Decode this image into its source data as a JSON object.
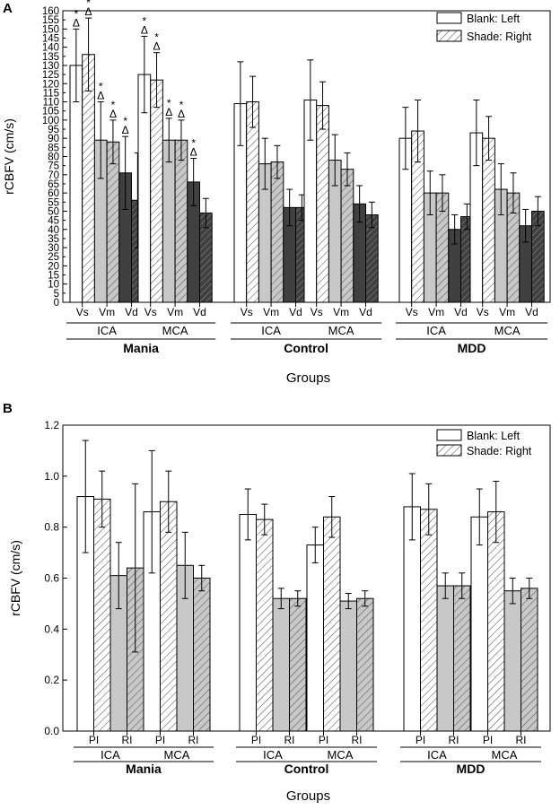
{
  "chart_data": [
    {
      "type": "bar",
      "panel_label": "A",
      "title": "",
      "xlabel": "Groups",
      "ylabel": "rCBFV (cm/s)",
      "ylim": [
        0,
        160
      ],
      "yticks": [
        0,
        5,
        10,
        15,
        20,
        25,
        30,
        35,
        40,
        45,
        50,
        55,
        60,
        65,
        70,
        75,
        80,
        85,
        90,
        95,
        100,
        105,
        110,
        115,
        120,
        125,
        130,
        135,
        140,
        145,
        150,
        155,
        160
      ],
      "grid": false,
      "legend": {
        "position": "top-right",
        "entries": [
          {
            "label": "Blank:  Left",
            "pattern": "blank"
          },
          {
            "label": "Shade: Right",
            "pattern": "hatch"
          }
        ]
      },
      "groups": [
        {
          "name": "Mania",
          "vessels": [
            {
              "name": "ICA",
              "params": [
                {
                  "label": "Vs",
                  "left": 130,
                  "right": 136,
                  "left_err": 20,
                  "right_err": 20,
                  "left_annot": [
                    "*",
                    "Δ"
                  ],
                  "right_annot": [
                    "*",
                    "Δ"
                  ]
                },
                {
                  "label": "Vm",
                  "left": 89,
                  "right": 88,
                  "left_err": 21,
                  "right_err": 12,
                  "left_annot": [
                    "*",
                    "Δ"
                  ],
                  "right_annot": [
                    "*",
                    "Δ"
                  ]
                },
                {
                  "label": "Vd",
                  "left": 71,
                  "right": 56,
                  "left_err": 20,
                  "right_err": 26,
                  "left_annot": [
                    "*",
                    "Δ"
                  ],
                  "right_annot": []
                }
              ]
            },
            {
              "name": "MCA",
              "params": [
                {
                  "label": "Vs",
                  "left": 125,
                  "right": 122,
                  "left_err": 21,
                  "right_err": 15,
                  "left_annot": [
                    "*",
                    "Δ"
                  ],
                  "right_annot": [
                    "*",
                    "Δ"
                  ]
                },
                {
                  "label": "Vm",
                  "left": 89,
                  "right": 89,
                  "left_err": 12,
                  "right_err": 11,
                  "left_annot": [
                    "*",
                    "Δ"
                  ],
                  "right_annot": [
                    "*",
                    "Δ"
                  ]
                },
                {
                  "label": "Vd",
                  "left": 66,
                  "right": 49,
                  "left_err": 13,
                  "right_err": 8,
                  "left_annot": [
                    "*",
                    "Δ"
                  ],
                  "right_annot": []
                }
              ]
            }
          ]
        },
        {
          "name": "Control",
          "vessels": [
            {
              "name": "ICA",
              "params": [
                {
                  "label": "Vs",
                  "left": 109,
                  "right": 110,
                  "left_err": 23,
                  "right_err": 14,
                  "left_annot": [],
                  "right_annot": []
                },
                {
                  "label": "Vm",
                  "left": 76,
                  "right": 77,
                  "left_err": 14,
                  "right_err": 9,
                  "left_annot": [],
                  "right_annot": []
                },
                {
                  "label": "Vd",
                  "left": 52,
                  "right": 52,
                  "left_err": 10,
                  "right_err": 7,
                  "left_annot": [],
                  "right_annot": []
                }
              ]
            },
            {
              "name": "MCA",
              "params": [
                {
                  "label": "Vs",
                  "left": 111,
                  "right": 108,
                  "left_err": 22,
                  "right_err": 13,
                  "left_annot": [],
                  "right_annot": []
                },
                {
                  "label": "Vm",
                  "left": 78,
                  "right": 73,
                  "left_err": 14,
                  "right_err": 9,
                  "left_annot": [],
                  "right_annot": []
                },
                {
                  "label": "Vd",
                  "left": 54,
                  "right": 48,
                  "left_err": 10,
                  "right_err": 7,
                  "left_annot": [],
                  "right_annot": []
                }
              ]
            }
          ]
        },
        {
          "name": "MDD",
          "vessels": [
            {
              "name": "ICA",
              "params": [
                {
                  "label": "Vs",
                  "left": 90,
                  "right": 94,
                  "left_err": 17,
                  "right_err": 17,
                  "left_annot": [],
                  "right_annot": []
                },
                {
                  "label": "Vm",
                  "left": 60,
                  "right": 60,
                  "left_err": 12,
                  "right_err": 10,
                  "left_annot": [],
                  "right_annot": []
                },
                {
                  "label": "Vd",
                  "left": 40,
                  "right": 47,
                  "left_err": 8,
                  "right_err": 7,
                  "left_annot": [],
                  "right_annot": []
                }
              ]
            },
            {
              "name": "MCA",
              "params": [
                {
                  "label": "Vs",
                  "left": 93,
                  "right": 90,
                  "left_err": 18,
                  "right_err": 12,
                  "left_annot": [],
                  "right_annot": []
                },
                {
                  "label": "Vm",
                  "left": 62,
                  "right": 60,
                  "left_err": 14,
                  "right_err": 11,
                  "left_annot": [],
                  "right_annot": []
                },
                {
                  "label": "Vd",
                  "left": 42,
                  "right": 50,
                  "left_err": 9,
                  "right_err": 8,
                  "left_annot": [],
                  "right_annot": []
                }
              ]
            }
          ]
        }
      ]
    },
    {
      "type": "bar",
      "panel_label": "B",
      "title": "",
      "xlabel": "Groups",
      "ylabel": "rCBFV (cm/s)",
      "ylim": [
        0,
        1.2
      ],
      "yticks": [
        "0.0",
        "0.2",
        "0.4",
        "0.6",
        "0.8",
        "1.0",
        "1.2"
      ],
      "grid": false,
      "legend": {
        "position": "top-right",
        "entries": [
          {
            "label": "Blank:  Left",
            "pattern": "blank"
          },
          {
            "label": "Shade: Right",
            "pattern": "hatch"
          }
        ]
      },
      "groups": [
        {
          "name": "Mania",
          "vessels": [
            {
              "name": "ICA",
              "params": [
                {
                  "label": "PI",
                  "left": 0.92,
                  "right": 0.91,
                  "left_err": 0.22,
                  "right_err": 0.11
                },
                {
                  "label": "RI",
                  "left": 0.61,
                  "right": 0.64,
                  "left_err": 0.13,
                  "right_err": 0.33
                }
              ]
            },
            {
              "name": "MCA",
              "params": [
                {
                  "label": "PI",
                  "left": 0.86,
                  "right": 0.9,
                  "left_err": 0.24,
                  "right_err": 0.12
                },
                {
                  "label": "RI",
                  "left": 0.65,
                  "right": 0.6,
                  "left_err": 0.13,
                  "right_err": 0.05
                }
              ]
            }
          ]
        },
        {
          "name": "Control",
          "vessels": [
            {
              "name": "ICA",
              "params": [
                {
                  "label": "PI",
                  "left": 0.85,
                  "right": 0.83,
                  "left_err": 0.1,
                  "right_err": 0.06
                },
                {
                  "label": "RI",
                  "left": 0.52,
                  "right": 0.52,
                  "left_err": 0.04,
                  "right_err": 0.03
                }
              ]
            },
            {
              "name": "MCA",
              "params": [
                {
                  "label": "PI",
                  "left": 0.73,
                  "right": 0.84,
                  "left_err": 0.07,
                  "right_err": 0.08
                },
                {
                  "label": "RI",
                  "left": 0.51,
                  "right": 0.52,
                  "left_err": 0.03,
                  "right_err": 0.03
                }
              ]
            }
          ]
        },
        {
          "name": "MDD",
          "vessels": [
            {
              "name": "ICA",
              "params": [
                {
                  "label": "PI",
                  "left": 0.88,
                  "right": 0.87,
                  "left_err": 0.13,
                  "right_err": 0.1
                },
                {
                  "label": "RI",
                  "left": 0.57,
                  "right": 0.57,
                  "left_err": 0.05,
                  "right_err": 0.05
                }
              ]
            },
            {
              "name": "MCA",
              "params": [
                {
                  "label": "PI",
                  "left": 0.84,
                  "right": 0.86,
                  "left_err": 0.11,
                  "right_err": 0.12
                },
                {
                  "label": "RI",
                  "left": 0.55,
                  "right": 0.56,
                  "left_err": 0.05,
                  "right_err": 0.04
                }
              ]
            }
          ]
        }
      ]
    }
  ],
  "colors": {
    "blank": "#ffffff",
    "light_fill": "#c8c8c8",
    "dark_fill": "#404040",
    "hatch_line": "#555555",
    "axis": "#000000"
  }
}
